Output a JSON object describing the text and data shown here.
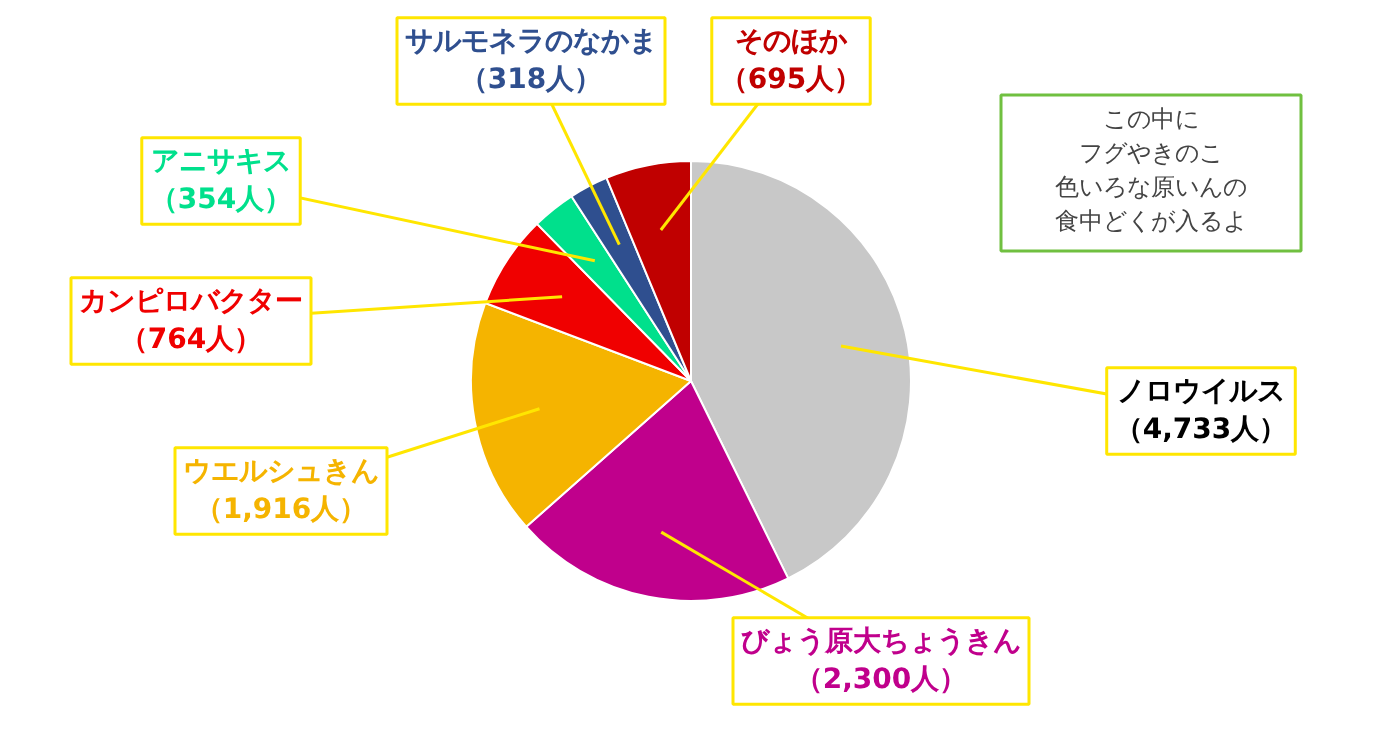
{
  "chart_data": {
    "type": "pie",
    "categories": [
      "ノロウイルス",
      "びょう原大ちょうきん",
      "ウエルシュきん",
      "カンピロバクター",
      "アニサキス",
      "サルモネラのなかま",
      "そのほか"
    ],
    "values": [
      4733,
      2300,
      1916,
      764,
      354,
      318,
      695
    ],
    "colors": [
      "#c8c8c8",
      "#c0008c",
      "#f5b400",
      "#f00000",
      "#00e08c",
      "#2f4f8f",
      "#c00000"
    ],
    "value_labels": [
      "（4,733人）",
      "（2,300人）",
      "（1,916人）",
      "（764人）",
      "（354人）",
      "（318人）",
      "（695人）"
    ],
    "annotations": [
      "この中に",
      "フグやきのこ",
      "色いろな原いんの",
      "食中どくが入るよ"
    ]
  }
}
